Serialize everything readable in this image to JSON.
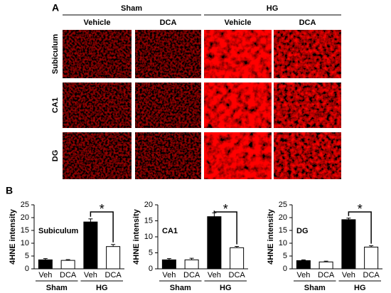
{
  "panel_a": {
    "label": "A",
    "groups": [
      "Sham",
      "HG"
    ],
    "columns": [
      "Vehicle",
      "DCA",
      "Vehicle",
      "DCA"
    ],
    "rows": [
      "Subiculum",
      "CA1",
      "DG"
    ]
  },
  "panel_b": {
    "label": "B"
  },
  "chart_data": [
    {
      "type": "bar",
      "title": "Subiculum",
      "y_label": "4HNE intensity",
      "categories": [
        "Veh",
        "DCA",
        "Veh",
        "DCA"
      ],
      "groups": [
        "Sham",
        "HG"
      ],
      "values": [
        3.5,
        3.3,
        18.3,
        8.7
      ],
      "errors": [
        0.5,
        0.3,
        1.2,
        0.8
      ],
      "colors": [
        "#000000",
        "#ffffff",
        "#000000",
        "#ffffff"
      ],
      "ylim": [
        0,
        25
      ],
      "yticks": [
        0,
        5,
        10,
        15,
        20,
        25
      ],
      "annotation": "*"
    },
    {
      "type": "bar",
      "title": "CA1",
      "y_label": "4HNE intensity",
      "categories": [
        "Veh",
        "DCA",
        "Veh",
        "DCA"
      ],
      "groups": [
        "Sham",
        "HG"
      ],
      "values": [
        2.8,
        2.8,
        16.3,
        6.6
      ],
      "errors": [
        0.4,
        0.5,
        1.2,
        0.4
      ],
      "colors": [
        "#000000",
        "#ffffff",
        "#000000",
        "#ffffff"
      ],
      "ylim": [
        0,
        20
      ],
      "yticks": [
        0,
        5,
        10,
        15,
        20
      ],
      "annotation": "*"
    },
    {
      "type": "bar",
      "title": "DG",
      "y_label": "4HNE intensity",
      "categories": [
        "Veh",
        "DCA",
        "Veh",
        "DCA"
      ],
      "groups": [
        "Sham",
        "HG"
      ],
      "values": [
        3.2,
        2.7,
        19.2,
        8.5
      ],
      "errors": [
        0.3,
        0.3,
        0.6,
        0.5
      ],
      "colors": [
        "#000000",
        "#ffffff",
        "#000000",
        "#ffffff"
      ],
      "ylim": [
        0,
        25
      ],
      "yticks": [
        0,
        5,
        10,
        15,
        20,
        25
      ],
      "annotation": "*"
    }
  ]
}
